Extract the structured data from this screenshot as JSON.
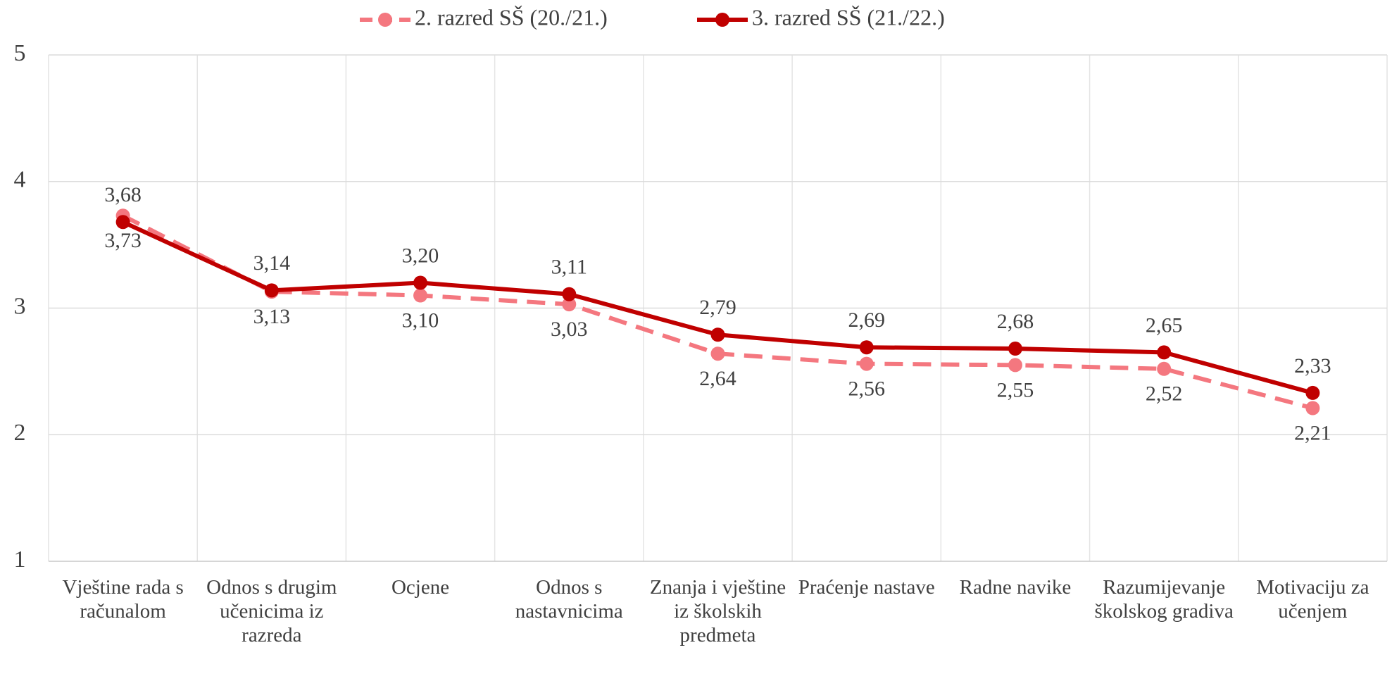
{
  "chart_data": {
    "type": "line",
    "categories": [
      "Vještine rada s računalom",
      "Odnos s drugim učenicima iz razreda",
      "Ocjene",
      "Odnos s nastavnicima",
      "Znanja i vještine iz školskih predmeta",
      "Praćenje nastave",
      "Radne navike",
      "Razumijevanje školskog gradiva",
      "Motivaciju za učenjem"
    ],
    "series": [
      {
        "name": "2. razred SŠ (20./21.)",
        "color": "#f4777f",
        "dashed": true,
        "values": [
          3.73,
          3.13,
          3.1,
          3.03,
          2.64,
          2.56,
          2.55,
          2.52,
          2.21
        ],
        "value_labels": [
          "3,73",
          "3,13",
          "3,10",
          "3,03",
          "2,64",
          "2,56",
          "2,55",
          "2,52",
          "2,21"
        ]
      },
      {
        "name": "3. razred SŠ (21./22.)",
        "color": "#c00000",
        "dashed": false,
        "values": [
          3.68,
          3.14,
          3.2,
          3.11,
          2.79,
          2.69,
          2.68,
          2.65,
          2.33
        ],
        "value_labels": [
          "3,68",
          "3,14",
          "3,20",
          "3,11",
          "2,79",
          "2,69",
          "2,68",
          "2,65",
          "2,33"
        ]
      }
    ],
    "ylim": [
      1,
      5
    ],
    "yticks": [
      1,
      2,
      3,
      4,
      5
    ],
    "grid": true,
    "legend": "top"
  }
}
